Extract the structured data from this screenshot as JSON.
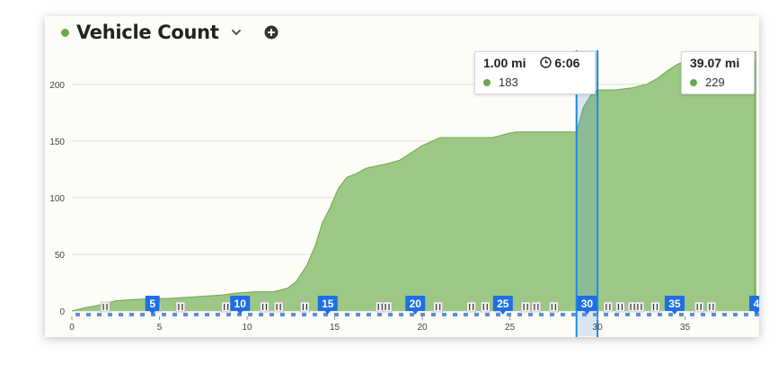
{
  "header": {
    "title": "Vehicle Count",
    "dot_color": "#6aa84f",
    "dropdown_icon": "chevron-down-icon",
    "add_icon": "plus-circle-icon"
  },
  "tooltips": {
    "cursor": {
      "distance": "1.00 mi",
      "time": "6:06",
      "value": "183",
      "time_icon": "clock-icon"
    },
    "end": {
      "distance": "39.07 mi",
      "value": "229"
    }
  },
  "chart_data": {
    "type": "area",
    "title": "Vehicle Count",
    "xlabel": "",
    "ylabel": "",
    "xlim": [
      0,
      39.07
    ],
    "ylim": [
      0,
      230
    ],
    "y_ticks": [
      0,
      50,
      100,
      150,
      200
    ],
    "x_ticks": [
      0,
      5,
      10,
      15,
      20,
      25,
      30,
      35
    ],
    "grid": true,
    "fill_color": "#9dc784",
    "line_color": "#6aa84f",
    "selection_range": [
      28.8,
      30.0
    ],
    "series": [
      {
        "values_x": [
          0,
          0.8,
          1.5,
          2.5,
          3.5,
          4.5,
          5.5,
          6.5,
          7.5,
          8.5,
          9.5,
          10.5,
          11.5,
          12.3,
          12.8,
          13.4,
          13.9,
          14.3,
          14.7,
          15.2,
          15.7,
          16.2,
          16.8,
          17.4,
          18.0,
          18.7,
          19.3,
          20.0,
          20.6,
          21.0,
          21.5,
          22.2,
          23.0,
          24.0,
          24.5,
          25.0,
          25.4,
          26.0,
          27.0,
          28.0,
          28.5,
          28.8,
          29.2,
          29.6,
          30.0,
          31.0,
          32.0,
          32.8,
          33.4,
          34.0,
          34.6,
          35.2,
          36.0,
          37.0,
          37.5,
          38.0,
          38.5,
          39.07
        ],
        "values_y": [
          0,
          3,
          5,
          9,
          10,
          11,
          11,
          12,
          13,
          14,
          16,
          17,
          17,
          20,
          26,
          40,
          58,
          78,
          90,
          108,
          118,
          121,
          126,
          128,
          130,
          133,
          139,
          146,
          150,
          153,
          153,
          153,
          153,
          153,
          155,
          157,
          158,
          158,
          158,
          158,
          158,
          158,
          180,
          190,
          195,
          195,
          197,
          200,
          205,
          212,
          218,
          221,
          221,
          221,
          223,
          225,
          226,
          229
        ]
      }
    ],
    "markers": [
      "5",
      "10",
      "15",
      "20",
      "25",
      "30",
      "35",
      "4"
    ]
  }
}
